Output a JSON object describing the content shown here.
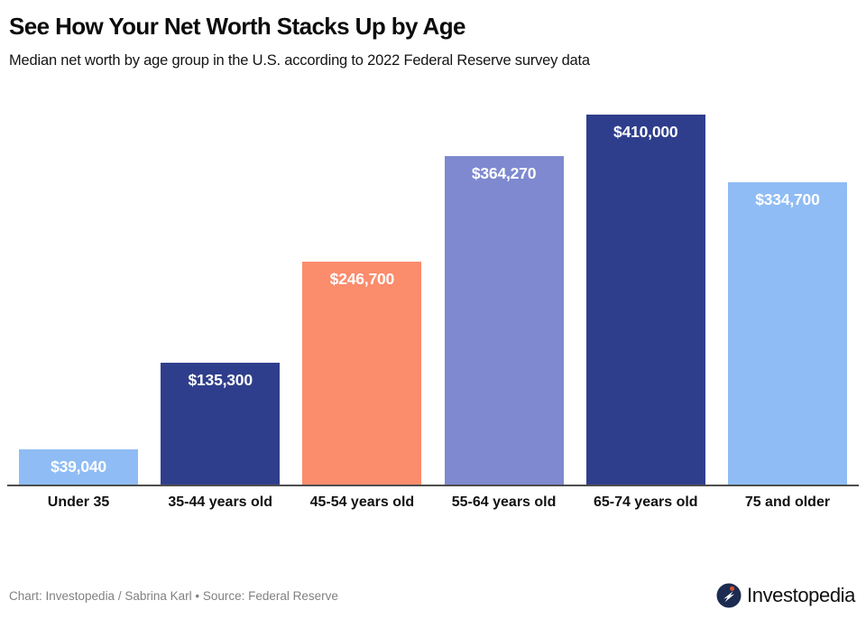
{
  "header": {
    "title": "See How Your Net Worth Stacks Up by Age",
    "subtitle": "Median net worth by age group in the U.S. according to 2022 Federal Reserve survey data"
  },
  "chart_data": {
    "type": "bar",
    "title": "See How Your Net Worth Stacks Up by Age",
    "subtitle": "Median net worth by age group in the U.S. according to 2022 Federal Reserve survey data",
    "categories": [
      "Under 35",
      "35-44 years old",
      "45-54 years old",
      "55-64 years old",
      "65-74 years old",
      "75 and older"
    ],
    "values": [
      39040,
      135300,
      246700,
      364270,
      410000,
      334700
    ],
    "value_labels": [
      "$39,040",
      "$135,300",
      "$246,700",
      "$364,270",
      "$410,000",
      "$334,700"
    ],
    "bar_colors": [
      "#8FBCF4",
      "#2F3E8C",
      "#FB8C6C",
      "#7E89D0",
      "#2F3E8C",
      "#8FBCF4"
    ],
    "xlabel": "",
    "ylabel": "",
    "ylim": [
      0,
      462000
    ],
    "grid": false,
    "legend": "none",
    "value_label_position": "inside-top",
    "axis_line_color": "#4d4d4d"
  },
  "footer": {
    "credit": "Chart: Investopedia / Sabrina Karl • Source: Federal Reserve",
    "brand": "Investopedia",
    "brand_icon": "investopedia-logo-icon",
    "brand_icon_colors": {
      "circle": "#1C2B51",
      "bolt": "#ffffff",
      "dot": "#D94F2B"
    }
  }
}
